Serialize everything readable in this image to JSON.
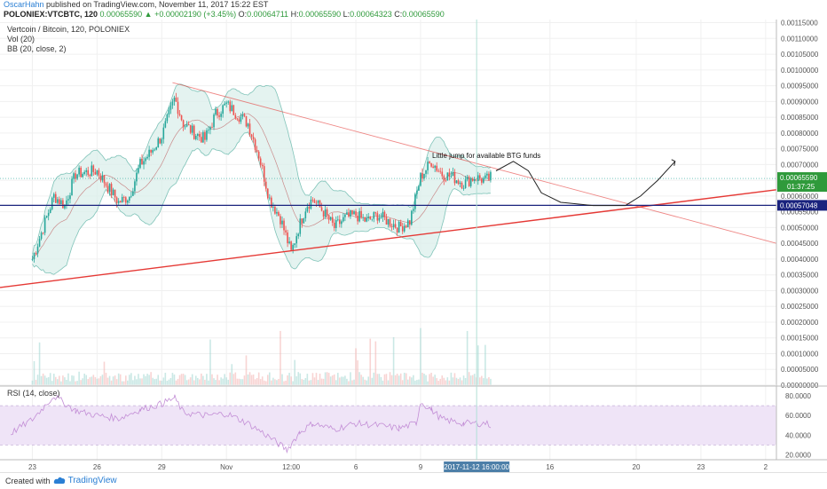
{
  "header": {
    "author": "OscarHahn",
    "published_text": "published on TradingView.com, November 11, 2017 15:22 EST",
    "symbol_line": "POLONIEX:VTCBTC, 120",
    "last": "0.00065590",
    "change": "+0.00002190 (+3.45%)",
    "open_label": "O:",
    "open": "0.00064711",
    "high_label": "H:",
    "high": "0.00065590",
    "low_label": "L:",
    "low": "0.00064323",
    "close_label": "C:",
    "close": "0.00065590"
  },
  "legend": {
    "title": "Vertcoin / Bitcoin, 120, POLONIEX",
    "vol": "Vol (20)",
    "bb": "BB (20, close, 2)"
  },
  "rsi_label": "RSI (14, close)",
  "annotation": "Little jump for available BTG funds",
  "price_badge": {
    "value": "0.00065590",
    "countdown": "01:37:25"
  },
  "level_badge": "0.00057048",
  "crosshair_date": "2017-11-12 16:00:00",
  "footer": {
    "created_with": "Created with",
    "brand": "TradingView"
  },
  "colors": {
    "up": "#26a69a",
    "down": "#ef5350",
    "band": "#d8eee9",
    "rsi_band": "#efe4f7",
    "trend": "#e53935",
    "support": "#1a237e"
  },
  "chart_data": {
    "type": "candlestick",
    "symbol": "POLONIEX:VTCBTC",
    "timeframe": "120",
    "price_axis": {
      "ticks": [
        "0.00115000",
        "0.00110000",
        "0.00105000",
        "0.00100000",
        "0.00095000",
        "0.00090000",
        "0.00085000",
        "0.00080000",
        "0.00075000",
        "0.00070000",
        "0.00065000",
        "0.00060000",
        "0.00055000",
        "0.00050000",
        "0.00045000",
        "0.00040000",
        "0.00035000",
        "0.00030000",
        "0.00025000",
        "0.00020000",
        "0.00015000",
        "0.00010000",
        "0.00005000",
        "0.00000000"
      ],
      "range": [
        0.0,
        0.00116
      ]
    },
    "time_axis": {
      "ticks": [
        "23",
        "26",
        "29",
        "Nov",
        "12:00",
        "6",
        "9",
        "16",
        "20",
        "23",
        "2"
      ],
      "tick_pos": [
        0,
        3,
        6,
        9,
        12,
        15,
        18,
        24,
        28,
        31,
        34
      ],
      "range": [
        -1.5,
        34.5
      ]
    },
    "rsi_axis": {
      "ticks": [
        "80.0000",
        "60.0000",
        "40.0000",
        "20.0000"
      ],
      "range": [
        15,
        90
      ],
      "band": [
        30,
        70
      ]
    },
    "price_series": [
      [
        0,
        0.0004
      ],
      [
        1,
        0.0006
      ],
      [
        1.5,
        0.00057
      ],
      [
        2,
        0.00067
      ],
      [
        3,
        0.00068
      ],
      [
        3.5,
        0.00063
      ],
      [
        4,
        0.00058
      ],
      [
        4.5,
        0.0006
      ],
      [
        5,
        0.0007
      ],
      [
        5.5,
        0.00074
      ],
      [
        6,
        0.00079
      ],
      [
        6.6,
        0.00091
      ],
      [
        7,
        0.00083
      ],
      [
        7.5,
        0.0008
      ],
      [
        8,
        0.00078
      ],
      [
        8.5,
        0.00086
      ],
      [
        9,
        0.00089
      ],
      [
        9.5,
        0.00086
      ],
      [
        10,
        0.00083
      ],
      [
        10.5,
        0.00073
      ],
      [
        11,
        0.00059
      ],
      [
        11.5,
        0.00053
      ],
      [
        12,
        0.00042
      ],
      [
        12.3,
        0.00049
      ],
      [
        12.7,
        0.00057
      ],
      [
        13,
        0.00059
      ],
      [
        13.5,
        0.00055
      ],
      [
        14,
        0.0005
      ],
      [
        14.5,
        0.00053
      ],
      [
        15,
        0.00054
      ],
      [
        15.5,
        0.00052
      ],
      [
        16,
        0.00054
      ],
      [
        16.5,
        0.00052
      ],
      [
        17,
        0.0005
      ],
      [
        17.5,
        0.00052
      ],
      [
        18,
        0.00066
      ],
      [
        18.5,
        0.00071
      ],
      [
        19,
        0.00067
      ],
      [
        19.5,
        0.00066
      ],
      [
        20,
        0.00064
      ],
      [
        20.5,
        0.00066
      ],
      [
        21,
        0.00065
      ],
      [
        21.3,
        0.00066
      ]
    ],
    "projection": [
      [
        21.5,
        0.00068
      ],
      [
        22.3,
        0.00071
      ],
      [
        23,
        0.00068
      ],
      [
        23.6,
        0.00061
      ],
      [
        24.5,
        0.00058
      ],
      [
        26,
        0.00057
      ],
      [
        27.5,
        0.00057
      ],
      [
        28.2,
        0.0006
      ],
      [
        29,
        0.00065
      ],
      [
        29.8,
        0.00071
      ]
    ],
    "trendlines": [
      {
        "kind": "resistance",
        "from": [
          6.5,
          0.00096
        ],
        "to": [
          34.5,
          0.00045
        ]
      },
      {
        "kind": "support",
        "from": [
          -1.5,
          0.00031
        ],
        "to": [
          34.5,
          0.00062
        ]
      },
      {
        "kind": "horizontal",
        "level": 0.00057048
      }
    ],
    "volume_max": 0.00028,
    "rsi_series": [
      [
        -1,
        42
      ],
      [
        0,
        56
      ],
      [
        1,
        80
      ],
      [
        2,
        65
      ],
      [
        3,
        60
      ],
      [
        4,
        57
      ],
      [
        5,
        66
      ],
      [
        6,
        72
      ],
      [
        6.6,
        78
      ],
      [
        7,
        63
      ],
      [
        8,
        60
      ],
      [
        9,
        62
      ],
      [
        10,
        52
      ],
      [
        11,
        38
      ],
      [
        11.8,
        25
      ],
      [
        12.4,
        43
      ],
      [
        13,
        52
      ],
      [
        14,
        46
      ],
      [
        15,
        52
      ],
      [
        16,
        50
      ],
      [
        17,
        47
      ],
      [
        17.8,
        52
      ],
      [
        18,
        74
      ],
      [
        18.5,
        66
      ],
      [
        19,
        56
      ],
      [
        20,
        52
      ],
      [
        21,
        52
      ],
      [
        21.3,
        50
      ]
    ]
  }
}
